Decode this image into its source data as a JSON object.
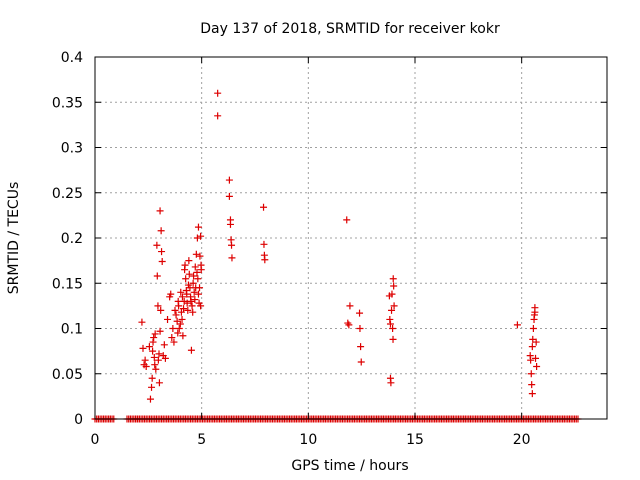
{
  "chart_data": {
    "type": "scatter",
    "title": "Day 137 of 2018, SRMTID for receiver kokr",
    "xlabel": "GPS time / hours",
    "ylabel": "SRMTID / TECUs",
    "xlim": [
      0,
      24
    ],
    "ylim": [
      0,
      0.4
    ],
    "xticks": [
      0,
      5,
      10,
      15,
      20
    ],
    "xtick_labels": [
      "0",
      "5",
      "10",
      "15",
      "20"
    ],
    "yticks": [
      0,
      0.05,
      0.1,
      0.15,
      0.2,
      0.25,
      0.3,
      0.35,
      0.4
    ],
    "ytick_labels": [
      "0",
      "0.05",
      "0.1",
      "0.15",
      "0.2",
      "0.25",
      "0.3",
      "0.35",
      "0.4"
    ],
    "grid": true,
    "marker": "plus",
    "color": "#dd0000",
    "series": [
      {
        "name": "SRMTID",
        "points": [
          [
            2.2,
            0.107
          ],
          [
            2.25,
            0.078
          ],
          [
            2.3,
            0.06
          ],
          [
            2.35,
            0.065
          ],
          [
            2.4,
            0.058
          ],
          [
            2.55,
            0.08
          ],
          [
            2.6,
            0.022
          ],
          [
            2.65,
            0.035
          ],
          [
            2.68,
            0.045
          ],
          [
            2.7,
            0.075
          ],
          [
            2.72,
            0.085
          ],
          [
            2.75,
            0.09
          ],
          [
            2.78,
            0.068
          ],
          [
            2.8,
            0.06
          ],
          [
            2.82,
            0.094
          ],
          [
            2.85,
            0.055
          ],
          [
            2.9,
            0.192
          ],
          [
            2.92,
            0.158
          ],
          [
            2.95,
            0.125
          ],
          [
            2.97,
            0.065
          ],
          [
            3.0,
            0.072
          ],
          [
            3.02,
            0.04
          ],
          [
            3.05,
            0.097
          ],
          [
            3.05,
            0.23
          ],
          [
            3.08,
            0.12
          ],
          [
            3.1,
            0.208
          ],
          [
            3.12,
            0.185
          ],
          [
            3.15,
            0.174
          ],
          [
            3.2,
            0.07
          ],
          [
            3.25,
            0.082
          ],
          [
            3.3,
            0.067
          ],
          [
            3.4,
            0.11
          ],
          [
            3.5,
            0.135
          ],
          [
            3.55,
            0.138
          ],
          [
            3.6,
            0.09
          ],
          [
            3.65,
            0.1
          ],
          [
            3.7,
            0.085
          ],
          [
            3.75,
            0.12
          ],
          [
            3.8,
            0.115
          ],
          [
            3.85,
            0.108
          ],
          [
            3.88,
            0.095
          ],
          [
            3.9,
            0.13
          ],
          [
            3.92,
            0.125
          ],
          [
            3.95,
            0.1
          ],
          [
            4.0,
            0.105
          ],
          [
            4.02,
            0.14
          ],
          [
            4.05,
            0.118
          ],
          [
            4.08,
            0.11
          ],
          [
            4.1,
            0.135
          ],
          [
            4.12,
            0.092
          ],
          [
            4.15,
            0.122
          ],
          [
            4.18,
            0.13
          ],
          [
            4.2,
            0.165
          ],
          [
            4.22,
            0.17
          ],
          [
            4.25,
            0.155
          ],
          [
            4.28,
            0.142
          ],
          [
            4.3,
            0.138
          ],
          [
            4.32,
            0.128
          ],
          [
            4.35,
            0.12
          ],
          [
            4.38,
            0.148
          ],
          [
            4.4,
            0.175
          ],
          [
            4.42,
            0.16
          ],
          [
            4.45,
            0.145
          ],
          [
            4.48,
            0.135
          ],
          [
            4.5,
            0.13
          ],
          [
            4.52,
            0.076
          ],
          [
            4.55,
            0.125
          ],
          [
            4.58,
            0.118
          ],
          [
            4.6,
            0.15
          ],
          [
            4.62,
            0.158
          ],
          [
            4.65,
            0.14
          ],
          [
            4.68,
            0.132
          ],
          [
            4.7,
            0.168
          ],
          [
            4.72,
            0.145
          ],
          [
            4.75,
            0.182
          ],
          [
            4.78,
            0.162
          ],
          [
            4.8,
            0.2
          ],
          [
            4.82,
            0.155
          ],
          [
            4.85,
            0.138
          ],
          [
            4.88,
            0.128
          ],
          [
            4.9,
            0.145
          ],
          [
            4.92,
            0.18
          ],
          [
            4.95,
            0.202
          ],
          [
            4.97,
            0.17
          ],
          [
            4.98,
            0.165
          ],
          [
            4.85,
            0.212
          ],
          [
            4.95,
            0.125
          ],
          [
            5.75,
            0.36
          ],
          [
            5.75,
            0.335
          ],
          [
            6.3,
            0.264
          ],
          [
            6.3,
            0.246
          ],
          [
            6.35,
            0.22
          ],
          [
            6.35,
            0.215
          ],
          [
            6.38,
            0.198
          ],
          [
            6.4,
            0.192
          ],
          [
            6.42,
            0.178
          ],
          [
            7.9,
            0.234
          ],
          [
            7.92,
            0.193
          ],
          [
            7.94,
            0.181
          ],
          [
            7.96,
            0.176
          ],
          [
            11.8,
            0.22
          ],
          [
            11.85,
            0.106
          ],
          [
            11.9,
            0.104
          ],
          [
            11.95,
            0.125
          ],
          [
            12.4,
            0.117
          ],
          [
            12.42,
            0.1
          ],
          [
            12.45,
            0.08
          ],
          [
            12.48,
            0.063
          ],
          [
            13.8,
            0.136
          ],
          [
            13.82,
            0.11
          ],
          [
            13.85,
            0.105
          ],
          [
            13.85,
            0.045
          ],
          [
            13.87,
            0.04
          ],
          [
            13.9,
            0.12
          ],
          [
            13.92,
            0.138
          ],
          [
            13.95,
            0.1
          ],
          [
            13.97,
            0.088
          ],
          [
            13.98,
            0.155
          ],
          [
            14.0,
            0.147
          ],
          [
            14.02,
            0.125
          ],
          [
            19.8,
            0.104
          ],
          [
            20.4,
            0.07
          ],
          [
            20.42,
            0.065
          ],
          [
            20.45,
            0.05
          ],
          [
            20.47,
            0.038
          ],
          [
            20.5,
            0.028
          ],
          [
            20.5,
            0.08
          ],
          [
            20.52,
            0.088
          ],
          [
            20.55,
            0.1
          ],
          [
            20.58,
            0.11
          ],
          [
            20.6,
            0.115
          ],
          [
            20.62,
            0.118
          ],
          [
            20.62,
            0.123
          ],
          [
            20.65,
            0.067
          ],
          [
            20.68,
            0.085
          ],
          [
            20.7,
            0.058
          ]
        ],
        "baseline": {
          "value": 0,
          "x_ranges": [
            [
              0,
              0.9
            ],
            [
              1.5,
              2.0
            ],
            [
              2.0,
              22.7
            ]
          ],
          "step": 0.08
        }
      }
    ]
  }
}
